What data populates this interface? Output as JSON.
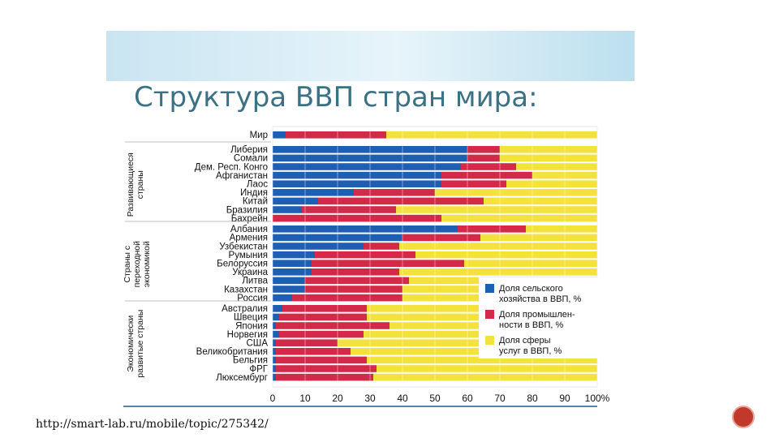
{
  "slide": {
    "title": "Структура ВВП стран мира:",
    "url": "http://smart-lab.ru/mobile/topic/275342/",
    "page_number": ""
  },
  "chart_data": {
    "type": "bar",
    "orientation": "horizontal",
    "stacked": true,
    "xlim": [
      0,
      100
    ],
    "x_ticks": [
      "0",
      "10",
      "20",
      "30",
      "40",
      "50",
      "60",
      "70",
      "80",
      "90",
      "100%"
    ],
    "grid": true,
    "legend_position": "right",
    "series": [
      {
        "name": "Доля сельского хозяйства в ВВП, %",
        "color": "#1f5fb3"
      },
      {
        "name": "Доля промышленности в ВВП, %",
        "color": "#d42a4a"
      },
      {
        "name": "Доля сферы услуг в ВВП, %",
        "color": "#f4e23c"
      }
    ],
    "groups": [
      {
        "label": "",
        "categories": [
          "Мир"
        ],
        "values": [
          [
            4,
            31,
            65
          ]
        ]
      },
      {
        "label": "Развивающиеся страны",
        "categories": [
          "Либерия",
          "Сомали",
          "Дем. Респ. Конго",
          "Афганистан",
          "Лаос",
          "Индия",
          "Китай",
          "Бразилия",
          "Бахрейн"
        ],
        "values": [
          [
            60,
            10,
            30
          ],
          [
            60,
            10,
            30
          ],
          [
            58,
            17,
            25
          ],
          [
            52,
            28,
            20
          ],
          [
            52,
            20,
            28
          ],
          [
            25,
            25,
            50
          ],
          [
            14,
            51,
            35
          ],
          [
            9,
            29,
            62
          ],
          [
            0,
            52,
            48
          ]
        ]
      },
      {
        "label": "Страны с переходной экономикой",
        "categories": [
          "Албания",
          "Армения",
          "Узбекистан",
          "Румыния",
          "Белоруссия",
          "Украина",
          "Литва",
          "Казахстан",
          "Россия"
        ],
        "values": [
          [
            57,
            21,
            22
          ],
          [
            40,
            24,
            36
          ],
          [
            28,
            11,
            61
          ],
          [
            13,
            31,
            56
          ],
          [
            12,
            47,
            41
          ],
          [
            12,
            27,
            61
          ],
          [
            10,
            32,
            58
          ],
          [
            10,
            30,
            60
          ],
          [
            6,
            34,
            60
          ]
        ]
      },
      {
        "label": "Экономически развитые страны",
        "categories": [
          "Австралия",
          "Швеция",
          "Япония",
          "Норвегия",
          "США",
          "Великобритания",
          "Бельгия",
          "ФРГ",
          "Люксембург"
        ],
        "values": [
          [
            3,
            26,
            71
          ],
          [
            2,
            27,
            71
          ],
          [
            1,
            35,
            64
          ],
          [
            2,
            26,
            72
          ],
          [
            1,
            19,
            80
          ],
          [
            1,
            23,
            76
          ],
          [
            1,
            28,
            71
          ],
          [
            1,
            31,
            68
          ],
          [
            1,
            30,
            69
          ]
        ]
      }
    ],
    "legend": [
      "Доля сельского хозяйства в ВВП, %",
      "Доля промышленности в ВВП, %",
      "Доля сферы услуг в ВВП, %"
    ],
    "legend_lines": [
      [
        "Доля сельского",
        "хозяйства в ВВП, %"
      ],
      [
        "Доля промышлен-",
        "ности в ВВП, %"
      ],
      [
        "Доля сферы",
        "услуг в ВВП, %"
      ]
    ],
    "group_label_lines": [
      [
        "Развивающиеся",
        "страны"
      ],
      [
        "Страны с",
        "переходной",
        "экономикой"
      ],
      [
        "Экономически",
        "развитые страны"
      ]
    ]
  }
}
